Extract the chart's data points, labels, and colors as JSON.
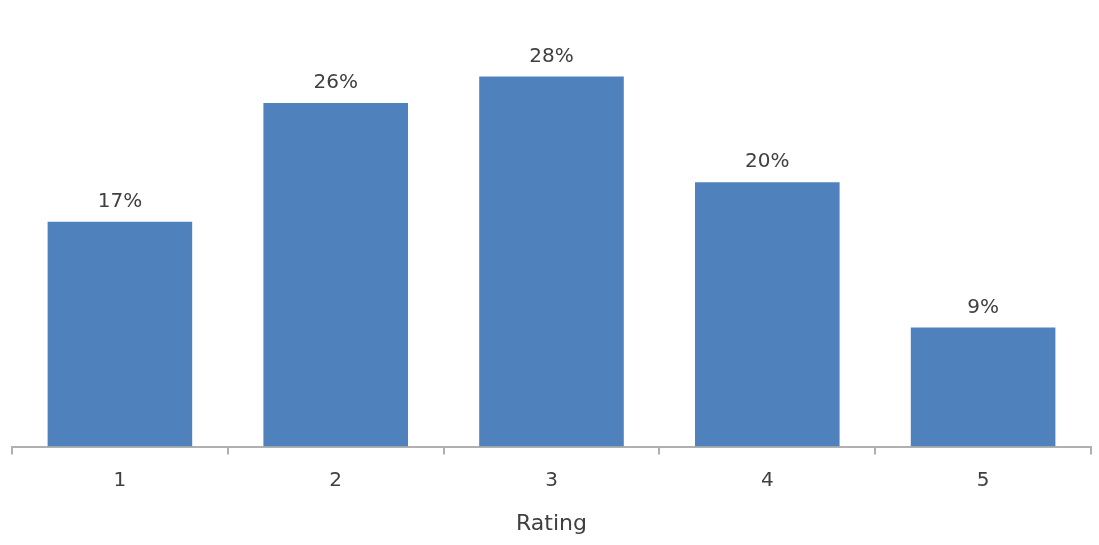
{
  "chart_data": {
    "type": "bar",
    "xlabel": "Rating",
    "categories": [
      "1",
      "2",
      "3",
      "4",
      "5"
    ],
    "values": [
      17,
      26,
      28,
      20,
      9
    ],
    "color": "#4f81bd",
    "value_labels": [
      "17%",
      "26%",
      "28%",
      "20%",
      "9%"
    ],
    "legend": false
  }
}
